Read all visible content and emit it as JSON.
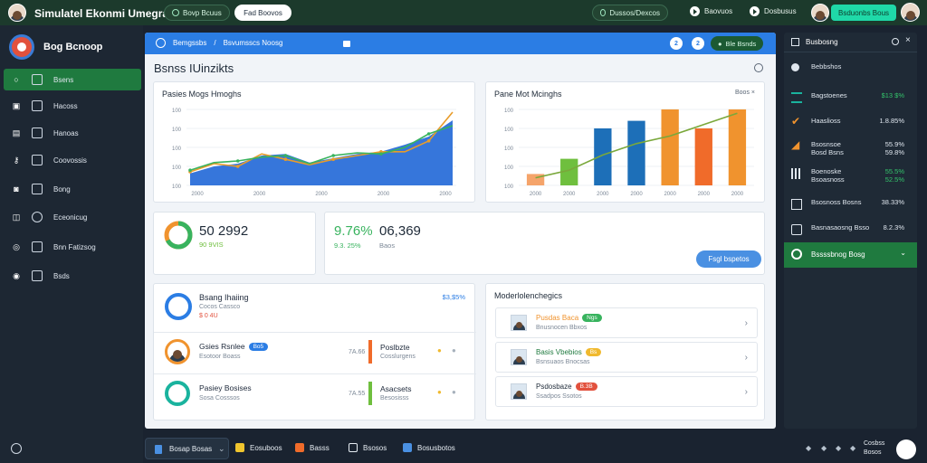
{
  "topbar": {
    "title": "Simulatel Ekonmi Umegrat",
    "pill_left": "Bovp Bcuus",
    "pill_white": "Fad Boovos",
    "pill_center": "Dussos/Dexcos",
    "item_a": "Baovuos",
    "item_b": "Dosbusus",
    "teal_button": "Bsduonbs Bous"
  },
  "sidebar": {
    "brand": "Bog Bcnoop",
    "items": [
      {
        "label": "Bsens",
        "active": true
      },
      {
        "label": "Hacoss"
      },
      {
        "label": "Hanoas"
      },
      {
        "label": "Coovossis"
      },
      {
        "label": "Bong"
      },
      {
        "label": "Eceonicug"
      },
      {
        "label": "Bnn Fatizsog"
      },
      {
        "label": "Bsds"
      }
    ]
  },
  "main_header": {
    "crumb_a": "Bemgssbs",
    "crumb_b": "Bsvumsscs Noosg",
    "btn_1": "2",
    "btn_2": "2",
    "green_btn": "Ble Bsnds"
  },
  "page": {
    "title": "Bsnss IUinzikts"
  },
  "card_line": {
    "title": "Pasies Mogs Hmoghs"
  },
  "card_bar": {
    "title": "Pane Mot Mcinghs",
    "filter": "Boos"
  },
  "stat_a": {
    "value": "50 2992",
    "sub": "90 9VIS"
  },
  "stat_b": {
    "value_green": "9.76%",
    "value_dark": "06,369",
    "sub_green": "9.3. 25%",
    "sub_gray": "Baos",
    "button": "Fsgl bspetos"
  },
  "list_card": {
    "head_title": "Bsang Ihaiing",
    "head_sub": "Cocos Cassco",
    "head_tag": "$ 0 4U",
    "head_link": "$3,$5%",
    "rows": [
      {
        "name": "Gsies Rsnlee",
        "badge": "Bo5",
        "sub": "Esotoor Boass",
        "mid": "7A.66",
        "right_label": "Poslbzte",
        "right_sub": "Cosslurgens"
      },
      {
        "name": "Pasiey Bosises",
        "sub": "Sosa Cosssos",
        "mid": "7A.55",
        "right_label": "Asacsets",
        "right_sub": "Besosisss"
      }
    ]
  },
  "tag_card": {
    "title": "Moderlolenchegics",
    "rows": [
      {
        "name": "Pusdas Baca",
        "badge": "Ngs",
        "sub": "Bnusnocen Bbxos"
      },
      {
        "name": "Basis Vbebios",
        "badge": "Bs",
        "sub": "Bsnsuaos Bnocsas"
      },
      {
        "name": "Psdosbaze",
        "badge": "B.3B",
        "sub": "Ssadpos Ssotos"
      }
    ]
  },
  "right_panel": {
    "head": "Busbosng",
    "section": "Bebbshos",
    "rows": [
      {
        "label": "Bagstoenes",
        "value": "$13 $%",
        "value_color": "#34c36b"
      },
      {
        "label": "Haaslioss",
        "value": "1.8.85%"
      },
      {
        "label": "Bsosnsoe\nBosd Bsns",
        "value": "55.9%\n59.8%"
      },
      {
        "label": "Boenoske\nBsoasnoss",
        "value": "55.5%\n52.5%",
        "value_color": "#34c36b"
      },
      {
        "label": "Bsosnoss Bosns",
        "value": "38.33%"
      },
      {
        "label": "Basnasaosng Bsso",
        "value": "8.2.3%"
      }
    ],
    "active": "Bssssbnog Bosg"
  },
  "taskbar": {
    "items": [
      "Bosap Bosas",
      "Eosuboos",
      "Basss",
      "Bsosos",
      "Bosusbotos"
    ],
    "tray_text": "Cosbss\nBosos"
  },
  "chart_data": [
    {
      "type": "line",
      "title": "Pasies Mogs Hmoghs",
      "x_tick_labels": [
        "2000",
        "2000",
        "2000",
        "2000",
        "2000"
      ],
      "y_tick_labels": [
        "100",
        "100",
        "100",
        "100",
        "100"
      ],
      "series": [
        {
          "values": [
            22,
            35,
            40,
            55,
            58,
            42,
            50,
            58,
            62,
            75,
            90,
            120
          ],
          "color": "#2b6fd9"
        },
        {
          "values": [
            25,
            40,
            35,
            58,
            48,
            38,
            48,
            55,
            62,
            62,
            82,
            135
          ],
          "color": "#e89c2a"
        },
        {
          "values": [
            28,
            42,
            45,
            52,
            55,
            40,
            55,
            60,
            58,
            70,
            95,
            110
          ],
          "color": "#38b35e"
        }
      ]
    },
    {
      "type": "bar",
      "title": "Pane Mot Mcinghs",
      "x_tick_labels": [
        "2000",
        "2000",
        "2000",
        "2000",
        "2000",
        "2000",
        "2000"
      ],
      "y_tick_labels": [
        "100",
        "100",
        "100",
        "100",
        "100"
      ],
      "values": [
        15,
        35,
        75,
        85,
        100,
        75,
        100
      ],
      "colors": [
        "#f5a46a",
        "#6fbf3e",
        "#1d6fb8",
        "#1d6fb8",
        "#f0932e",
        "#f06b2a",
        "#f0932e"
      ],
      "trend": [
        10,
        20,
        40,
        55,
        65,
        80,
        95
      ]
    }
  ]
}
